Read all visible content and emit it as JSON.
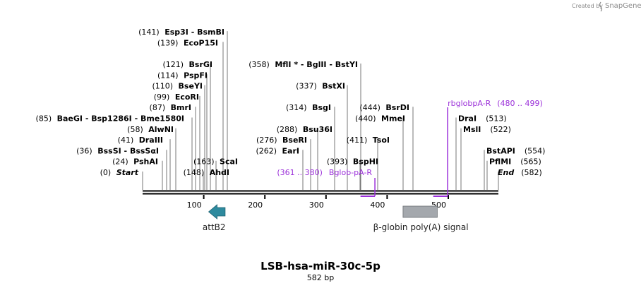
{
  "header": {
    "credit": "Created by",
    "brand": "SnapGene"
  },
  "map": {
    "length": 582,
    "title": "LSB-hsa-miR-30c-5p",
    "subtitle": "582 bp",
    "ruler_ticks": [
      100,
      200,
      300,
      400,
      500
    ]
  },
  "sites": [
    {
      "id": "start",
      "pos": "(0)",
      "name": "Start",
      "pos_bp": 0,
      "row": 0,
      "side": "left",
      "x_bp": 0,
      "italic": true
    },
    {
      "id": "pshai",
      "pos": "(24)",
      "name": "PshAI",
      "pos_bp": 24,
      "row": 1,
      "side": "left",
      "x_bp": 24
    },
    {
      "id": "bsssi",
      "pos": "(36)",
      "name": "BssSI - BssSαI",
      "pos_bp": 36,
      "row": 2,
      "side": "left",
      "x_bp": 36
    },
    {
      "id": "draiii",
      "pos": "(41)",
      "name": "DraIII",
      "pos_bp": 41,
      "row": 3,
      "side": "left",
      "x_bp": 41
    },
    {
      "id": "alwni",
      "pos": "(58)",
      "name": "AlwNI",
      "pos_bp": 58,
      "row": 4,
      "side": "left",
      "x_bp": 58
    },
    {
      "id": "baegi",
      "pos": "(85)",
      "name": "BaeGI - Bsp1286I - Bme1580I",
      "pos_bp": 85,
      "row": 5,
      "side": "left",
      "x_bp": 85
    },
    {
      "id": "bmri",
      "pos": "(87)",
      "name": "BmrI",
      "pos_bp": 87,
      "row": 6,
      "side": "left",
      "x_bp": 87
    },
    {
      "id": "ecori",
      "pos": "(99)",
      "name": "EcoRI",
      "pos_bp": 99,
      "row": 7,
      "side": "left",
      "x_bp": 99
    },
    {
      "id": "bseyi",
      "pos": "(110)",
      "name": "BseYI",
      "pos_bp": 110,
      "row": 8,
      "side": "left",
      "x_bp": 110
    },
    {
      "id": "pspfi",
      "pos": "(114)",
      "name": "PspFI",
      "pos_bp": 114,
      "row": 9,
      "side": "left",
      "x_bp": 114
    },
    {
      "id": "bsrgi",
      "pos": "(121)",
      "name": "BsrGI",
      "pos_bp": 121,
      "row": 10,
      "side": "left",
      "x_bp": 121
    },
    {
      "id": "ecop15i",
      "pos": "(139)",
      "name": "EcoP15I",
      "pos_bp": 139,
      "row": 12,
      "side": "left",
      "x_bp": 139
    },
    {
      "id": "esp3i",
      "pos": "(141)",
      "name": "Esp3I - BsmBI",
      "pos_bp": 141,
      "row": 13,
      "side": "left",
      "x_bp": 141
    },
    {
      "id": "ahdi",
      "pos": "(148)",
      "name": "AhdI",
      "pos_bp": 148,
      "row": 0,
      "side": "left",
      "x_bp": 148
    },
    {
      "id": "scai",
      "pos": "(163)",
      "name": "ScaI",
      "pos_bp": 163,
      "row": 1,
      "side": "left",
      "x_bp": 163
    },
    {
      "id": "eari",
      "pos": "(262)",
      "name": "EarI",
      "pos_bp": 262,
      "row": 2,
      "side": "left",
      "x_bp": 262
    },
    {
      "id": "bseri",
      "pos": "(276)",
      "name": "BseRI",
      "pos_bp": 276,
      "row": 3,
      "side": "left",
      "x_bp": 276
    },
    {
      "id": "bsu36i",
      "pos": "(288)",
      "name": "Bsu36I",
      "pos_bp": 288,
      "row": 4,
      "side": "left",
      "x_bp": 288
    },
    {
      "id": "bsgi",
      "pos": "(314)",
      "name": "BsgI",
      "pos_bp": 314,
      "row": 6,
      "side": "left",
      "x_bp": 314
    },
    {
      "id": "bstxi",
      "pos": "(337)",
      "name": "BstXI",
      "pos_bp": 337,
      "row": 8,
      "side": "left",
      "x_bp": 337
    },
    {
      "id": "mfli",
      "pos": "(358)",
      "name": "MflI * - BglII - BstYI",
      "pos_bp": 358,
      "row": 10,
      "side": "left",
      "x_bp": 358
    },
    {
      "id": "bsphi",
      "pos": "(393)",
      "name": "BspHI",
      "pos_bp": 393,
      "row": 1,
      "side": "left",
      "x_bp": 393
    },
    {
      "id": "tsoi",
      "pos": "(411)",
      "name": "TsoI",
      "pos_bp": 411,
      "row": 3,
      "side": "left",
      "x_bp": 411
    },
    {
      "id": "mmei",
      "pos": "(440)",
      "name": "MmeI",
      "pos_bp": 440,
      "row": 5,
      "side": "left",
      "x_bp": 440
    },
    {
      "id": "bsrdi",
      "pos": "(444)",
      "name": "BsrDI",
      "pos_bp": 444,
      "row": 6,
      "side": "left",
      "x_bp": 444
    },
    {
      "id": "drai",
      "pos": "(513)",
      "name": "DraI",
      "pos_bp": 513,
      "row": 5,
      "side": "right",
      "x_bp": 513
    },
    {
      "id": "msli",
      "pos": "(522)",
      "name": "MslI",
      "pos_bp": 522,
      "row": 4,
      "side": "right",
      "x_bp": 522
    },
    {
      "id": "bstapi",
      "pos": "(554)",
      "name": "BstAPI",
      "pos_bp": 554,
      "row": 2,
      "side": "right",
      "x_bp": 554
    },
    {
      "id": "pflmi",
      "pos": "(565)",
      "name": "PflMI",
      "pos_bp": 565,
      "row": 1,
      "side": "right",
      "x_bp": 565
    },
    {
      "id": "end",
      "pos": "(582)",
      "name": "End",
      "pos_bp": 582,
      "row": 0,
      "side": "right",
      "x_bp": 582,
      "italic": true
    }
  ],
  "primers": [
    {
      "id": "bglob",
      "range": "(361 .. 380)",
      "name": "Bglob-pA-R",
      "start_bp": 361,
      "end_bp": 380,
      "dir": "reverse"
    },
    {
      "id": "rbglob",
      "range": "(480 .. 499)",
      "name": "rbglobpA-R",
      "start_bp": 480,
      "end_bp": 499,
      "dir": "reverse"
    }
  ],
  "features": [
    {
      "id": "attb2",
      "label": "attB2",
      "start_bp": 108,
      "end_bp": 135,
      "type": "arrow",
      "color": "#2e8a9e"
    },
    {
      "id": "pa",
      "label": "β-globin poly(A) signal",
      "start_bp": 426,
      "end_bp": 482,
      "type": "box",
      "color": "#a4a8ad"
    }
  ],
  "colors": {
    "primer": "#9b30d9",
    "backbone": "#000000"
  }
}
